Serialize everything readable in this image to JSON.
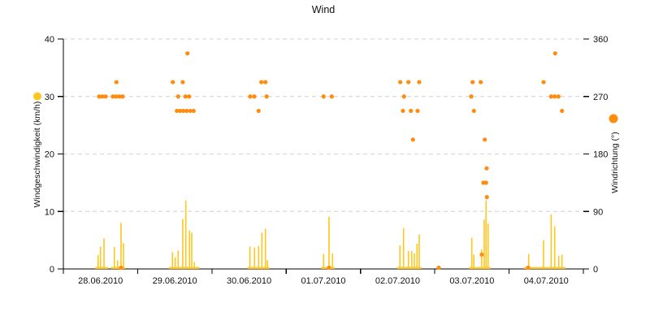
{
  "chart_data": {
    "type": "bar+scatter",
    "title": "Wind",
    "grid": {
      "style": "dashed",
      "color": "#D9D9D9"
    },
    "axis_color": "#000000",
    "x_axis": {
      "labels": [
        "28.06.2010",
        "29.06.2010",
        "30.06.2010",
        "01.07.2010",
        "02.07.2010",
        "03.07.2010",
        "04.07.2010"
      ],
      "range_days": [
        0,
        7
      ]
    },
    "y_left": {
      "label": "Windgeschwindigkeit (km/h)",
      "ticks": [
        0,
        10,
        20,
        30,
        40
      ],
      "range": [
        0,
        40
      ],
      "marker_color": "#FFC61E"
    },
    "y_right": {
      "label": "Windrichtung (°)",
      "ticks": [
        0,
        90,
        180,
        270,
        360
      ],
      "range": [
        0,
        360
      ],
      "marker_color": "#FF8C0D"
    },
    "series": [
      {
        "name": "Windgeschwindigkeit",
        "type": "bar",
        "axis": "left",
        "color": "#FFC61E",
        "points": [
          [
            0.467,
            2.4
          ],
          [
            0.5,
            3.9
          ],
          [
            0.547,
            5.3
          ],
          [
            0.686,
            3.8
          ],
          [
            0.729,
            1.5
          ],
          [
            0.776,
            8.0
          ],
          [
            0.809,
            4.5
          ],
          [
            1.469,
            2.9
          ],
          [
            1.506,
            2.0
          ],
          [
            1.545,
            3.2
          ],
          [
            1.607,
            8.7
          ],
          [
            1.648,
            11.9
          ],
          [
            1.698,
            6.7
          ],
          [
            1.728,
            6.3
          ],
          [
            1.764,
            1.2
          ],
          [
            2.512,
            3.9
          ],
          [
            2.573,
            3.7
          ],
          [
            2.628,
            4.0
          ],
          [
            2.672,
            6.3
          ],
          [
            2.72,
            7.0
          ],
          [
            2.748,
            1.5
          ],
          [
            3.503,
            2.6
          ],
          [
            3.576,
            9.1
          ],
          [
            3.623,
            2.7
          ],
          [
            4.531,
            4.1
          ],
          [
            4.579,
            7.1
          ],
          [
            4.645,
            3.1
          ],
          [
            4.689,
            3.1
          ],
          [
            4.725,
            2.7
          ],
          [
            4.761,
            4.4
          ],
          [
            4.79,
            6.0
          ],
          [
            5.498,
            5.4
          ],
          [
            5.526,
            2.5
          ],
          [
            5.629,
            3.4
          ],
          [
            5.665,
            8.6
          ],
          [
            5.69,
            11.9
          ],
          [
            5.717,
            7.9
          ],
          [
            6.264,
            2.6
          ],
          [
            6.464,
            5.0
          ],
          [
            6.566,
            9.5
          ],
          [
            6.614,
            7.4
          ],
          [
            6.669,
            2.3
          ],
          [
            6.712,
            2.5
          ]
        ],
        "baseline_segments": [
          [
            0.43,
            0.6
          ],
          [
            0.64,
            0.83
          ],
          [
            1.42,
            1.83
          ],
          [
            2.48,
            2.77
          ],
          [
            3.47,
            3.65
          ],
          [
            4.49,
            4.82
          ],
          [
            5.46,
            5.75
          ],
          [
            6.2,
            6.76
          ]
        ],
        "baseline_value": 0.35
      },
      {
        "name": "Windrichtung",
        "type": "scatter",
        "axis": "right",
        "color": "#FF8C0D",
        "points": [
          [
            0.481,
            270
          ],
          [
            0.525,
            270
          ],
          [
            0.569,
            270
          ],
          [
            0.667,
            270
          ],
          [
            0.711,
            270
          ],
          [
            0.755,
            270
          ],
          [
            0.798,
            270
          ],
          [
            0.714,
            292.5
          ],
          [
            0.776,
            0
          ],
          [
            1.473,
            292.5
          ],
          [
            1.607,
            292.5
          ],
          [
            1.545,
            270
          ],
          [
            1.644,
            270
          ],
          [
            1.692,
            270
          ],
          [
            1.67,
            337.5
          ],
          [
            1.528,
            247.5
          ],
          [
            1.571,
            247.5
          ],
          [
            1.615,
            247.5
          ],
          [
            1.659,
            247.5
          ],
          [
            1.709,
            247.5
          ],
          [
            1.753,
            247.5
          ],
          [
            2.515,
            270
          ],
          [
            2.57,
            270
          ],
          [
            2.737,
            270
          ],
          [
            2.665,
            292.5
          ],
          [
            2.72,
            292.5
          ],
          [
            2.628,
            247.5
          ],
          [
            3.503,
            270
          ],
          [
            3.613,
            270
          ],
          [
            3.576,
            0
          ],
          [
            4.535,
            292.5
          ],
          [
            4.645,
            292.5
          ],
          [
            4.79,
            292.5
          ],
          [
            4.586,
            270
          ],
          [
            4.571,
            247.5
          ],
          [
            4.678,
            247.5
          ],
          [
            4.768,
            247.5
          ],
          [
            4.706,
            202.5
          ],
          [
            5.053,
            0
          ],
          [
            5.509,
            292.5
          ],
          [
            5.618,
            292.5
          ],
          [
            5.49,
            270
          ],
          [
            5.526,
            247.5
          ],
          [
            5.632,
            22.5
          ],
          [
            5.673,
            202.5
          ],
          [
            5.698,
            157.5
          ],
          [
            5.654,
            135
          ],
          [
            5.69,
            135
          ],
          [
            5.701,
            112.5
          ],
          [
            6.256,
            0
          ],
          [
            6.464,
            292.5
          ],
          [
            6.566,
            270
          ],
          [
            6.614,
            270
          ],
          [
            6.664,
            270
          ],
          [
            6.712,
            247.5
          ],
          [
            6.62,
            337.5
          ]
        ]
      }
    ]
  }
}
